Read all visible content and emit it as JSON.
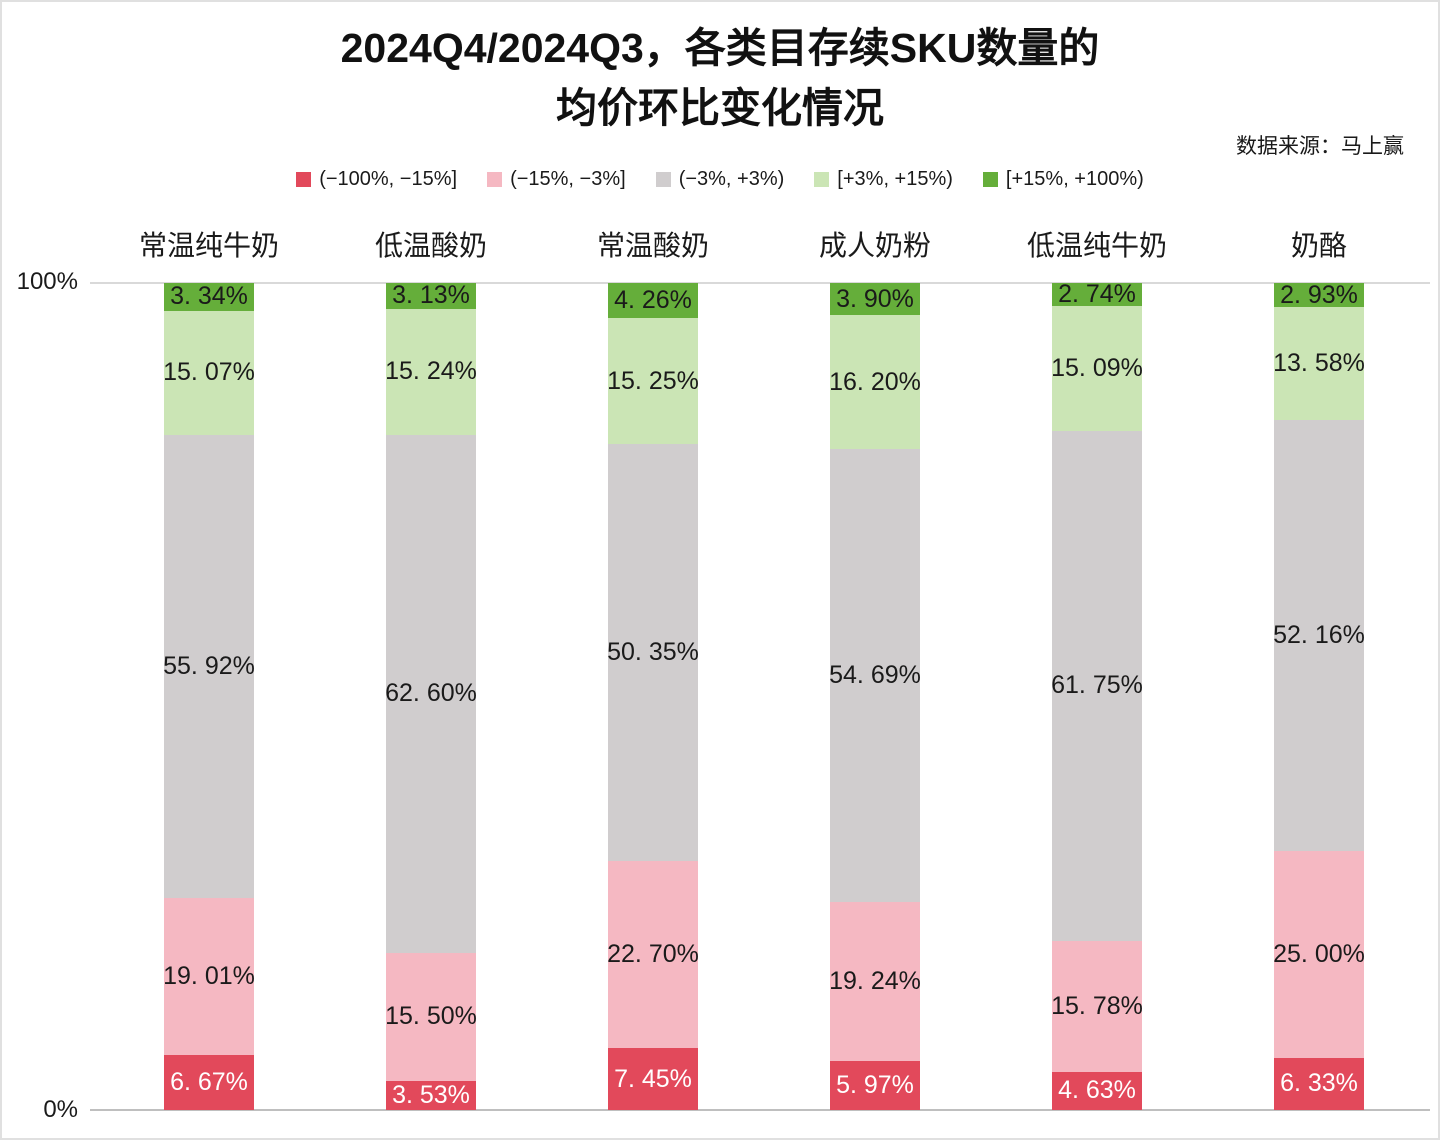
{
  "title": {
    "line1": "2024Q4/2024Q3，各类目存续SKU数量的",
    "line2": "均价环比变化情况"
  },
  "source": "数据来源：马上赢",
  "axis": {
    "y_top": "100%",
    "y_bottom": "0%"
  },
  "legend": [
    {
      "label": "(−100%, −15%]",
      "color": "#e2495b"
    },
    {
      "label": "(−15%, −3%]",
      "color": "#f5b8c2"
    },
    {
      "label": "(−3%, +3%)",
      "color": "#d0cdce"
    },
    {
      "label": "[+3%, +15%)",
      "color": "#cbe5b5"
    },
    {
      "label": "[+15%, +100%)",
      "color": "#65ae3a"
    }
  ],
  "chart_data": {
    "type": "bar",
    "stacked": true,
    "percent_total": 100,
    "title": "2024Q4/2024Q3，各类目存续SKU数量的均价环比变化情况",
    "categories": [
      "常温纯牛奶",
      "低温酸奶",
      "常温酸奶",
      "成人奶粉",
      "低温纯牛奶",
      "奶酪"
    ],
    "series": [
      {
        "name": "(−100%, −15%]",
        "color": "#e2495b",
        "label_color": "#ffffff",
        "values": [
          6.67,
          3.53,
          7.45,
          5.97,
          4.63,
          6.33
        ]
      },
      {
        "name": "(−15%, −3%]",
        "color": "#f5b8c2",
        "label_color": "#1a1a1a",
        "values": [
          19.01,
          15.5,
          22.7,
          19.24,
          15.78,
          25.0
        ]
      },
      {
        "name": "(−3%, +3%)",
        "color": "#d0cdce",
        "label_color": "#1a1a1a",
        "values": [
          55.92,
          62.6,
          50.35,
          54.69,
          61.75,
          52.16
        ]
      },
      {
        "name": "[+3%, +15%)",
        "color": "#cbe5b5",
        "label_color": "#1a1a1a",
        "values": [
          15.07,
          15.24,
          15.25,
          16.2,
          15.09,
          13.58
        ]
      },
      {
        "name": "[+15%, +100%)",
        "color": "#65ae3a",
        "label_color": "#1a1a1a",
        "values": [
          3.34,
          3.13,
          4.26,
          3.9,
          2.74,
          2.93
        ]
      }
    ],
    "ylim": [
      0,
      100
    ],
    "ytick_labels": [
      "0%",
      "100%"
    ],
    "grid": "top-and-baseline-only",
    "legend_position": "top"
  }
}
